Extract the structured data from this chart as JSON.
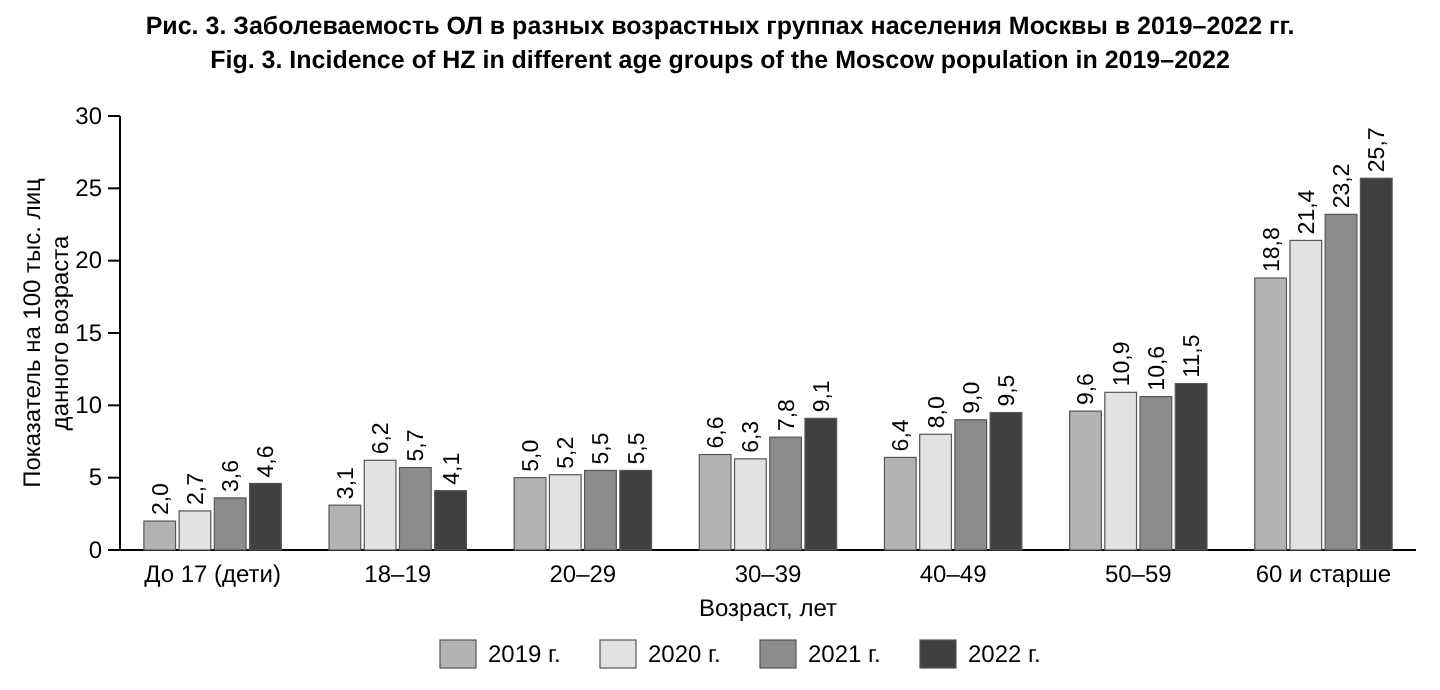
{
  "chart_data": {
    "type": "bar",
    "title": "Рис. 3. Заболеваемость ОЛ в разных возрастных группах населения Москвы в 2019–2022 гг.",
    "subtitle": "Fig. 3. Incidence of HZ in different age groups of the Moscow population in 2019–2022",
    "xlabel": "Возраст, лет",
    "ylabel": "Показатель на 100 тыс. лиц данного возраста",
    "categories": [
      "До 17 (дети)",
      "18–19",
      "20–29",
      "30–39",
      "40–49",
      "50–59",
      "60 и старше"
    ],
    "series": [
      {
        "name": "2019 г.",
        "color": "#b3b3b3",
        "values": [
          2.0,
          3.1,
          5.0,
          6.6,
          6.4,
          9.6,
          18.8
        ],
        "value_labels": [
          "2,0",
          "3,1",
          "5,0",
          "6,6",
          "6,4",
          "9,6",
          "18,8"
        ]
      },
      {
        "name": "2020 г.",
        "color": "#e2e2e2",
        "values": [
          2.7,
          6.2,
          5.2,
          6.3,
          8.0,
          10.9,
          21.4
        ],
        "value_labels": [
          "2,7",
          "6,2",
          "5,2",
          "6,3",
          "8,0",
          "10,9",
          "21,4"
        ]
      },
      {
        "name": "2021 г.",
        "color": "#8c8c8c",
        "values": [
          3.6,
          5.7,
          5.5,
          7.8,
          9.0,
          10.6,
          23.2
        ],
        "value_labels": [
          "3,6",
          "5,7",
          "5,5",
          "7,8",
          "9,0",
          "10,6",
          "23,2"
        ]
      },
      {
        "name": "2022 г.",
        "color": "#404040",
        "values": [
          4.6,
          4.1,
          5.5,
          9.1,
          9.5,
          11.5,
          25.7
        ],
        "value_labels": [
          "4,6",
          "4,1",
          "5,5",
          "9,1",
          "9,5",
          "11,5",
          "25,7"
        ]
      }
    ],
    "ylim": [
      0,
      30
    ],
    "yticks": [
      0,
      5,
      10,
      15,
      20,
      25,
      30
    ],
    "grid": false,
    "legend": "bottom"
  }
}
